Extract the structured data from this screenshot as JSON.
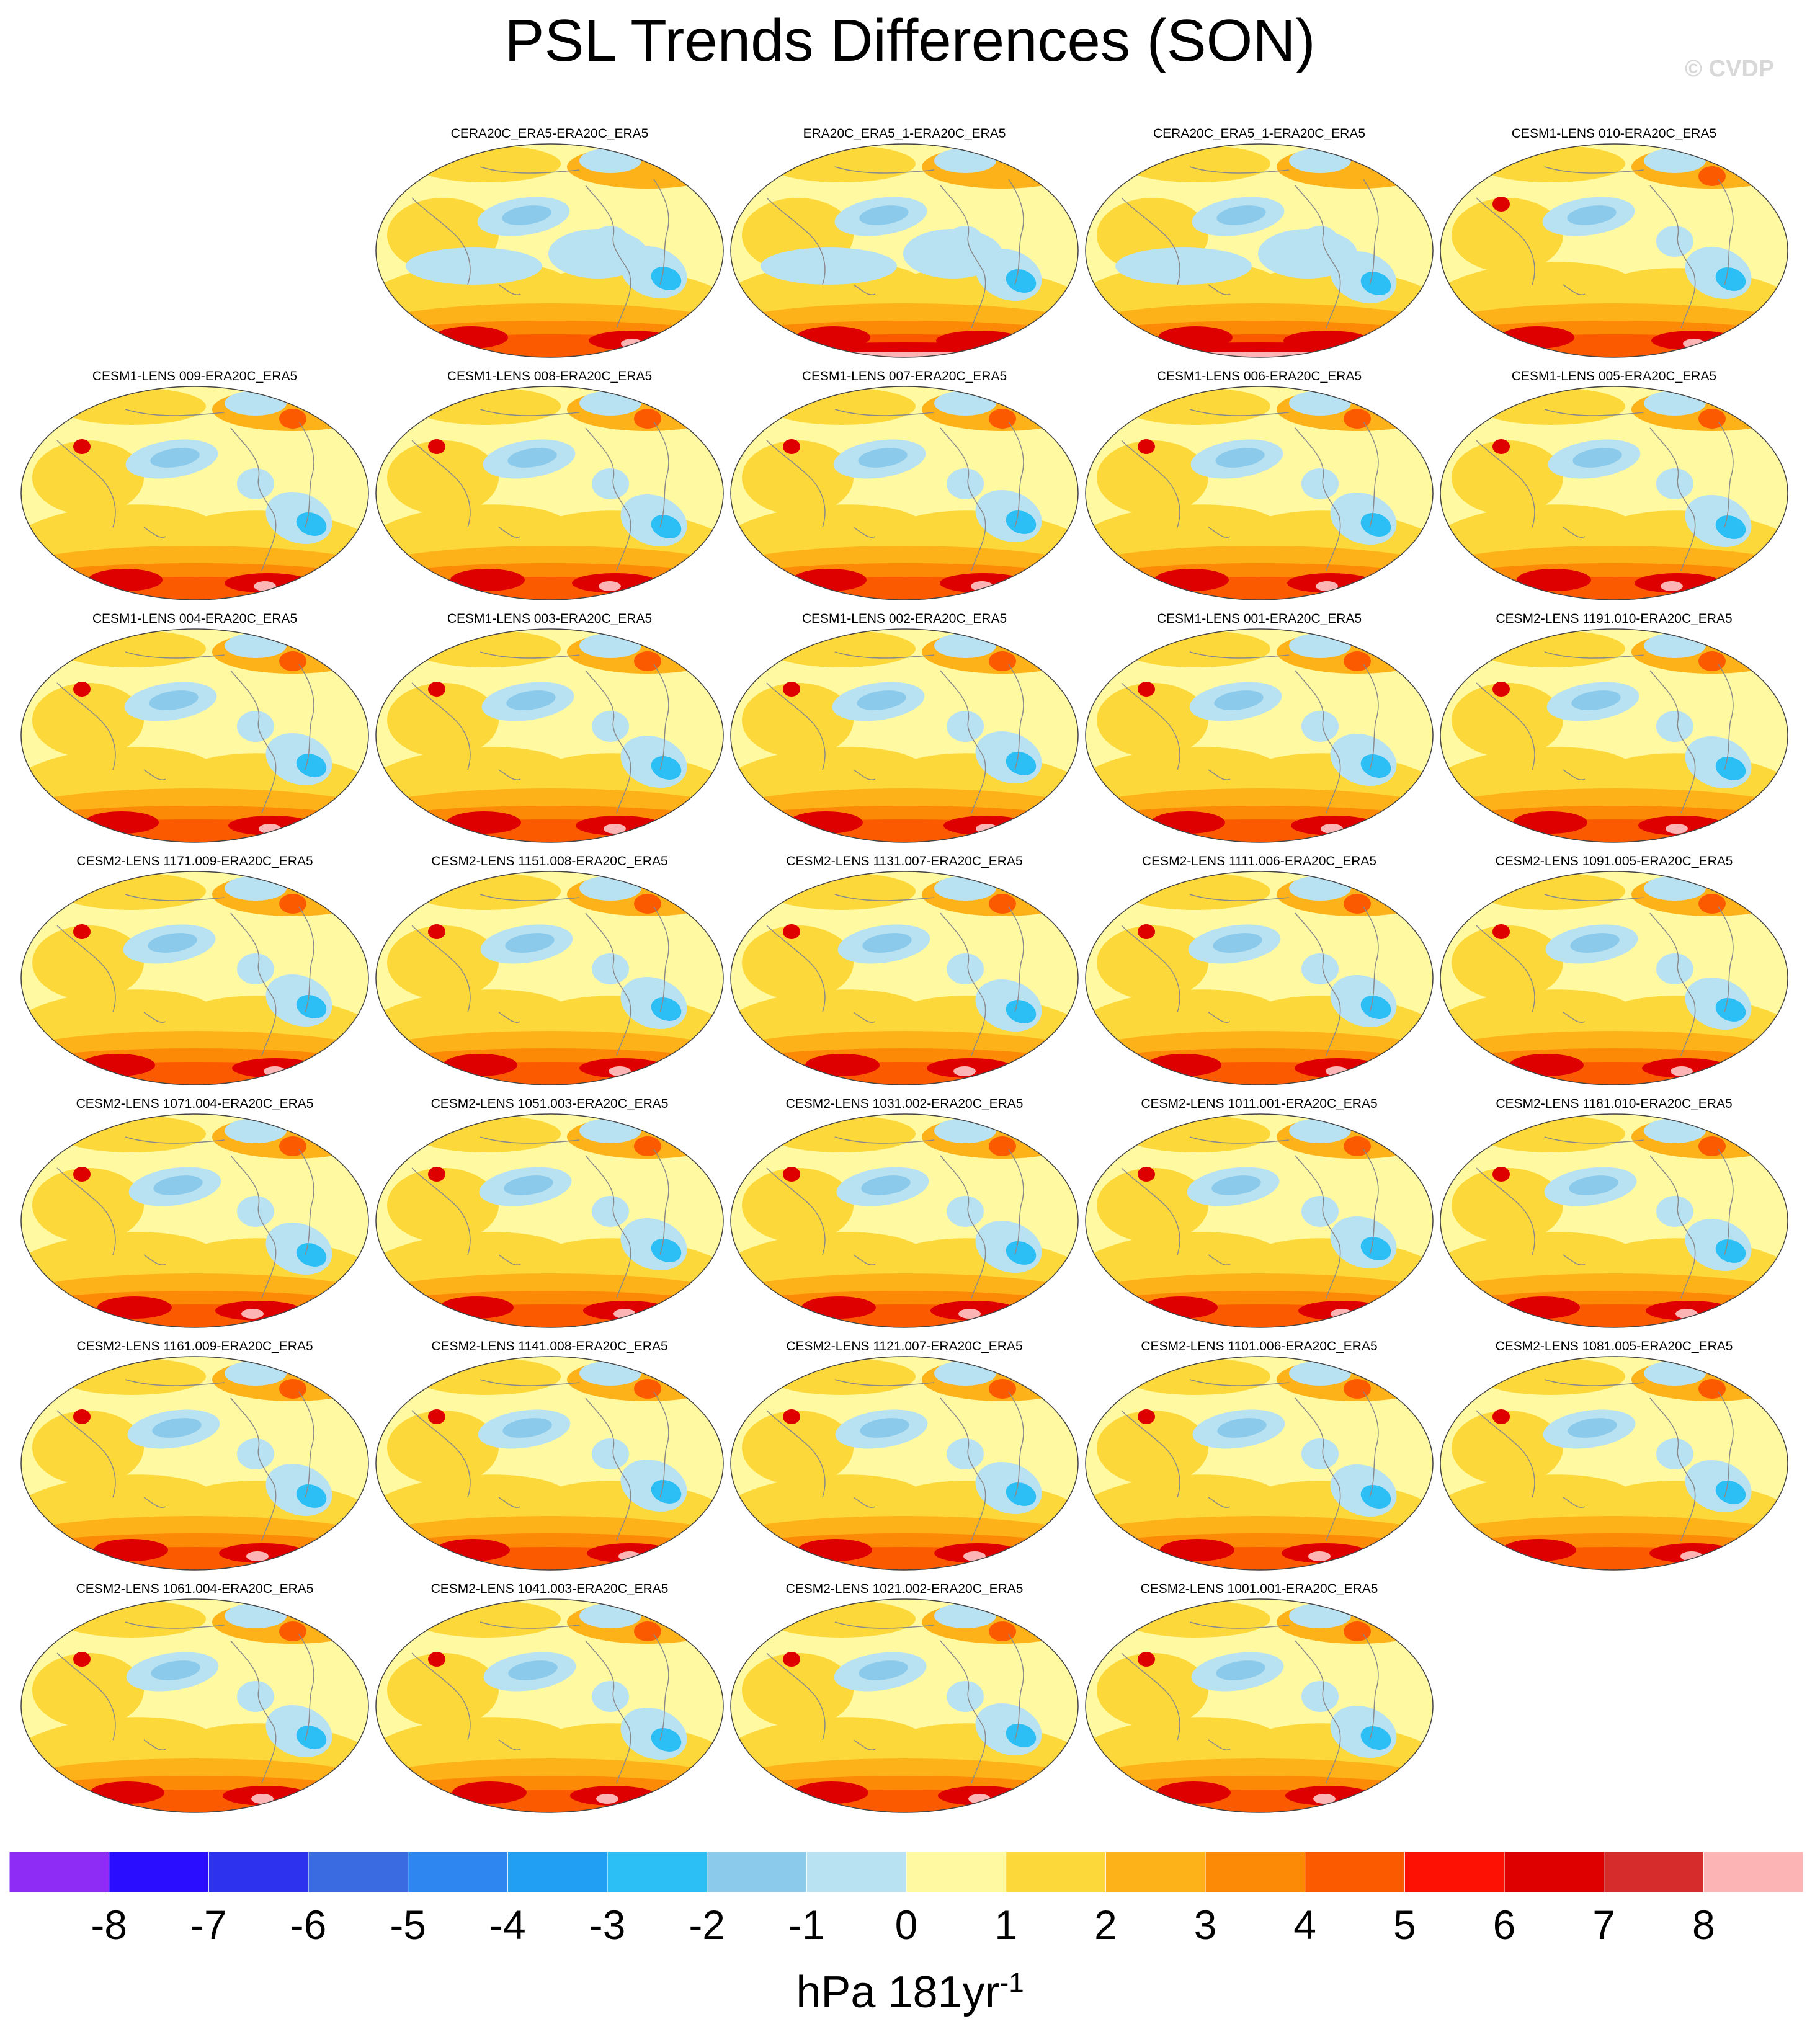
{
  "title": "PSL Trends Differences (SON)",
  "watermark": "© CVDP",
  "colorbar": {
    "colors": [
      "#8e2cf6",
      "#2a0cff",
      "#2c32ee",
      "#3a6be0",
      "#2e87f1",
      "#219ff2",
      "#2bbff6",
      "#8bcaea",
      "#b8e1f2",
      "#fff9a2",
      "#fdd83a",
      "#fdb21a",
      "#fd8a06",
      "#fc5a00",
      "#fd1104",
      "#de0000",
      "#d62c2c",
      "#fdb4b4"
    ],
    "ticks": [
      "-8",
      "-7",
      "-6",
      "-5",
      "-4",
      "-3",
      "-2",
      "-1",
      "0",
      "1",
      "2",
      "3",
      "4",
      "5",
      "6",
      "7",
      "8"
    ],
    "units_main": "hPa 181yr",
    "units_exp": "-1"
  },
  "map_colors": {
    "base": "#fff9a2",
    "low1": "#b8e1f2",
    "low2": "#8bcaea",
    "low3": "#2bbff6",
    "high1": "#fdd83a",
    "high2": "#fdb21a",
    "high3": "#fd8a06",
    "high4": "#fc5a00",
    "high5": "#de0000",
    "high6": "#fdb4b4",
    "coast": "#8a8a8a"
  },
  "panels": [
    {
      "label": "CERA20C_ERA5-ERA20C_ERA5",
      "style": "obs"
    },
    {
      "label": "ERA20C_ERA5_1-ERA20C_ERA5",
      "style": "obs-strong"
    },
    {
      "label": "CERA20C_ERA5_1-ERA20C_ERA5",
      "style": "obs-strong"
    },
    {
      "label": "CESM1-LENS 010-ERA20C_ERA5",
      "style": "model"
    },
    {
      "label": "CESM1-LENS 009-ERA20C_ERA5",
      "style": "model"
    },
    {
      "label": "CESM1-LENS 008-ERA20C_ERA5",
      "style": "model"
    },
    {
      "label": "CESM1-LENS 007-ERA20C_ERA5",
      "style": "model"
    },
    {
      "label": "CESM1-LENS 006-ERA20C_ERA5",
      "style": "model"
    },
    {
      "label": "CESM1-LENS 005-ERA20C_ERA5",
      "style": "model"
    },
    {
      "label": "CESM1-LENS 004-ERA20C_ERA5",
      "style": "model"
    },
    {
      "label": "CESM1-LENS 003-ERA20C_ERA5",
      "style": "model"
    },
    {
      "label": "CESM1-LENS 002-ERA20C_ERA5",
      "style": "model"
    },
    {
      "label": "CESM1-LENS 001-ERA20C_ERA5",
      "style": "model"
    },
    {
      "label": "CESM2-LENS 1191.010-ERA20C_ERA5",
      "style": "model"
    },
    {
      "label": "CESM2-LENS 1171.009-ERA20C_ERA5",
      "style": "model"
    },
    {
      "label": "CESM2-LENS 1151.008-ERA20C_ERA5",
      "style": "model"
    },
    {
      "label": "CESM2-LENS 1131.007-ERA20C_ERA5",
      "style": "model"
    },
    {
      "label": "CESM2-LENS 1111.006-ERA20C_ERA5",
      "style": "model"
    },
    {
      "label": "CESM2-LENS 1091.005-ERA20C_ERA5",
      "style": "model"
    },
    {
      "label": "CESM2-LENS 1071.004-ERA20C_ERA5",
      "style": "model"
    },
    {
      "label": "CESM2-LENS 1051.003-ERA20C_ERA5",
      "style": "model"
    },
    {
      "label": "CESM2-LENS 1031.002-ERA20C_ERA5",
      "style": "model"
    },
    {
      "label": "CESM2-LENS 1011.001-ERA20C_ERA5",
      "style": "model"
    },
    {
      "label": "CESM2-LENS 1181.010-ERA20C_ERA5",
      "style": "model"
    },
    {
      "label": "CESM2-LENS 1161.009-ERA20C_ERA5",
      "style": "model"
    },
    {
      "label": "CESM2-LENS 1141.008-ERA20C_ERA5",
      "style": "model"
    },
    {
      "label": "CESM2-LENS 1121.007-ERA20C_ERA5",
      "style": "model"
    },
    {
      "label": "CESM2-LENS 1101.006-ERA20C_ERA5",
      "style": "model"
    },
    {
      "label": "CESM2-LENS 1081.005-ERA20C_ERA5",
      "style": "model"
    },
    {
      "label": "CESM2-LENS 1061.004-ERA20C_ERA5",
      "style": "model"
    },
    {
      "label": "CESM2-LENS 1041.003-ERA20C_ERA5",
      "style": "model"
    },
    {
      "label": "CESM2-LENS 1021.002-ERA20C_ERA5",
      "style": "model"
    },
    {
      "label": "CESM2-LENS 1001.001-ERA20C_ERA5",
      "style": "model"
    }
  ]
}
